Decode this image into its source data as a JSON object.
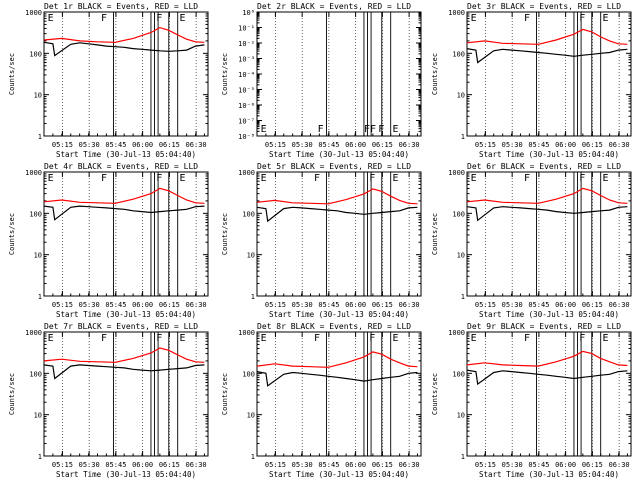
{
  "figure": {
    "time_start_label": "Start Time (30-Jul-13 05:04:40)",
    "x_tick_labels": [
      "05:15",
      "05:30",
      "05:45",
      "06:00",
      "06:15",
      "06:30"
    ],
    "ylabel": "Counts/sec"
  },
  "colors": {
    "events": "#000000",
    "lld": "#ff0000",
    "axes": "#000000"
  },
  "chart_data": [
    {
      "type": "line",
      "title": "Det 1r BLACK = Events, RED = LLD",
      "ylabel": "Counts/sec",
      "xlabel": "Start Time (30-Jul-13 05:04:40)",
      "yscale": "log",
      "ylim": [
        1,
        1000
      ],
      "y_tick_labels": [
        "1",
        "10",
        "100",
        "1000"
      ],
      "letters": [
        "E",
        "F",
        "F",
        "E"
      ],
      "series": [
        {
          "name": "Events",
          "color": "black",
          "x_min": [
            0,
            5,
            6,
            15,
            20,
            25,
            30,
            35,
            40,
            45,
            50,
            55,
            60,
            65,
            70,
            75,
            80,
            85,
            90
          ],
          "values": [
            185,
            170,
            88,
            165,
            180,
            170,
            160,
            150,
            145,
            140,
            130,
            125,
            120,
            115,
            112,
            115,
            120,
            150,
            160
          ]
        },
        {
          "name": "LLD",
          "color": "red",
          "x_min": [
            0,
            10,
            20,
            30,
            40,
            50,
            60,
            65,
            70,
            75,
            80,
            85,
            90
          ],
          "values": [
            210,
            230,
            200,
            190,
            185,
            230,
            320,
            420,
            360,
            280,
            220,
            190,
            185
          ]
        }
      ]
    },
    {
      "type": "line",
      "title": "Det 2r BLACK = Events, RED = LLD",
      "ylabel": "Counts/sec",
      "xlabel": "Start Time (30-Jul-13 05:04:40)",
      "yscale": "log",
      "ylim": [
        1e-08,
        1
      ],
      "y_tick_labels": [
        "10⁻⁸",
        "10⁻⁷",
        "10⁻⁶",
        "10⁻⁵",
        "10⁻⁴",
        "10⁻³",
        "10⁻²",
        "10⁻¹",
        "10⁰"
      ],
      "letters": [
        "E",
        "F",
        "FF",
        "F",
        "E"
      ],
      "series": []
    },
    {
      "type": "line",
      "title": "Det 3r BLACK = Events, RED = LLD",
      "ylabel": "Counts/sec",
      "xlabel": "Start Time (30-Jul-13 05:04:40)",
      "yscale": "log",
      "ylim": [
        1,
        1000
      ],
      "y_tick_labels": [
        "1",
        "10",
        "100",
        "1000"
      ],
      "letters": [
        "E",
        "F",
        "F",
        "E"
      ],
      "series": [
        {
          "name": "Events",
          "color": "black",
          "x_min": [
            0,
            5,
            6,
            15,
            20,
            25,
            30,
            35,
            40,
            45,
            50,
            55,
            60,
            65,
            70,
            75,
            80,
            85,
            90
          ],
          "values": [
            130,
            120,
            60,
            115,
            125,
            120,
            115,
            110,
            105,
            100,
            95,
            90,
            85,
            90,
            95,
            100,
            105,
            120,
            125
          ]
        },
        {
          "name": "LLD",
          "color": "red",
          "x_min": [
            0,
            10,
            20,
            30,
            40,
            50,
            60,
            65,
            70,
            75,
            80,
            85,
            90
          ],
          "values": [
            180,
            200,
            175,
            170,
            165,
            210,
            290,
            380,
            330,
            250,
            200,
            170,
            165
          ]
        }
      ]
    },
    {
      "type": "line",
      "title": "Det 4r BLACK = Events, RED = LLD",
      "ylabel": "Counts/sec",
      "xlabel": "Start Time (30-Jul-13 05:04:40)",
      "yscale": "log",
      "ylim": [
        1,
        1000
      ],
      "y_tick_labels": [
        "1",
        "10",
        "100",
        "1000"
      ],
      "letters": [
        "E",
        "F",
        "F",
        "E"
      ],
      "series": [
        {
          "name": "Events",
          "color": "black",
          "x_min": [
            0,
            5,
            6,
            15,
            20,
            25,
            30,
            35,
            40,
            45,
            50,
            55,
            60,
            65,
            70,
            75,
            80,
            85,
            90
          ],
          "values": [
            150,
            140,
            70,
            140,
            150,
            145,
            140,
            135,
            130,
            125,
            115,
            110,
            105,
            110,
            115,
            120,
            125,
            145,
            150
          ]
        },
        {
          "name": "LLD",
          "color": "red",
          "x_min": [
            0,
            10,
            20,
            30,
            40,
            50,
            60,
            65,
            70,
            75,
            80,
            85,
            90
          ],
          "values": [
            190,
            210,
            185,
            180,
            175,
            220,
            300,
            400,
            350,
            270,
            210,
            180,
            175
          ]
        }
      ]
    },
    {
      "type": "line",
      "title": "Det 5r BLACK = Events, RED = LLD",
      "ylabel": "Counts/sec",
      "xlabel": "Start Time (30-Jul-13 05:04:40)",
      "yscale": "log",
      "ylim": [
        1,
        1000
      ],
      "y_tick_labels": [
        "1",
        "10",
        "100",
        "1000"
      ],
      "letters": [
        "E",
        "F",
        "F",
        "E"
      ],
      "series": [
        {
          "name": "Events",
          "color": "black",
          "x_min": [
            0,
            5,
            6,
            15,
            20,
            25,
            30,
            35,
            40,
            45,
            50,
            55,
            60,
            65,
            70,
            75,
            80,
            85,
            90
          ],
          "values": [
            140,
            130,
            65,
            130,
            140,
            135,
            130,
            125,
            120,
            115,
            105,
            100,
            95,
            100,
            105,
            110,
            115,
            135,
            140
          ]
        },
        {
          "name": "LLD",
          "color": "red",
          "x_min": [
            0,
            10,
            20,
            30,
            40,
            50,
            60,
            65,
            70,
            75,
            80,
            85,
            90
          ],
          "values": [
            185,
            205,
            180,
            175,
            170,
            215,
            295,
            390,
            340,
            260,
            205,
            175,
            170
          ]
        }
      ]
    },
    {
      "type": "line",
      "title": "Det 6r BLACK = Events, RED = LLD",
      "ylabel": "Counts/sec",
      "xlabel": "Start Time (30-Jul-13 05:04:40)",
      "yscale": "log",
      "ylim": [
        1,
        1000
      ],
      "y_tick_labels": [
        "1",
        "10",
        "100",
        "1000"
      ],
      "letters": [
        "E",
        "F",
        "F",
        "E"
      ],
      "series": [
        {
          "name": "Events",
          "color": "black",
          "x_min": [
            0,
            5,
            6,
            15,
            20,
            25,
            30,
            35,
            40,
            45,
            50,
            55,
            60,
            65,
            70,
            75,
            80,
            85,
            90
          ],
          "values": [
            145,
            135,
            68,
            135,
            145,
            140,
            135,
            130,
            125,
            120,
            110,
            105,
            100,
            105,
            110,
            115,
            120,
            140,
            145
          ]
        },
        {
          "name": "LLD",
          "color": "red",
          "x_min": [
            0,
            10,
            20,
            30,
            40,
            50,
            60,
            65,
            70,
            75,
            80,
            85,
            90
          ],
          "values": [
            190,
            210,
            185,
            180,
            175,
            220,
            300,
            400,
            350,
            270,
            210,
            180,
            175
          ]
        }
      ]
    },
    {
      "type": "line",
      "title": "Det 7r BLACK = Events, RED = LLD",
      "ylabel": "Counts/sec",
      "xlabel": "Start Time (30-Jul-13 05:04:40)",
      "yscale": "log",
      "ylim": [
        1,
        1000
      ],
      "y_tick_labels": [
        "1",
        "10",
        "100",
        "1000"
      ],
      "letters": [
        "E",
        "F",
        "F",
        "E"
      ],
      "series": [
        {
          "name": "Events",
          "color": "black",
          "x_min": [
            0,
            5,
            6,
            15,
            20,
            25,
            30,
            35,
            40,
            45,
            50,
            55,
            60,
            65,
            70,
            75,
            80,
            85,
            90
          ],
          "values": [
            160,
            150,
            75,
            150,
            160,
            155,
            150,
            145,
            140,
            135,
            125,
            120,
            115,
            120,
            125,
            130,
            135,
            155,
            160
          ]
        },
        {
          "name": "LLD",
          "color": "red",
          "x_min": [
            0,
            10,
            20,
            30,
            40,
            50,
            60,
            65,
            70,
            75,
            80,
            85,
            90
          ],
          "values": [
            200,
            220,
            195,
            190,
            185,
            230,
            310,
            410,
            360,
            280,
            220,
            190,
            185
          ]
        }
      ]
    },
    {
      "type": "line",
      "title": "Det 8r BLACK = Events, RED = LLD",
      "ylabel": "Counts/sec",
      "xlabel": "Start Time (30-Jul-13 05:04:40)",
      "yscale": "log",
      "ylim": [
        1,
        1000
      ],
      "y_tick_labels": [
        "1",
        "10",
        "100",
        "1000"
      ],
      "letters": [
        "E",
        "F",
        "F",
        "E"
      ],
      "series": [
        {
          "name": "Events",
          "color": "black",
          "x_min": [
            0,
            5,
            6,
            15,
            20,
            25,
            30,
            35,
            40,
            45,
            50,
            55,
            60,
            65,
            70,
            75,
            80,
            85,
            90
          ],
          "values": [
            110,
            100,
            50,
            95,
            105,
            100,
            95,
            90,
            85,
            80,
            75,
            70,
            65,
            70,
            75,
            80,
            85,
            100,
            105
          ]
        },
        {
          "name": "LLD",
          "color": "red",
          "x_min": [
            0,
            10,
            20,
            30,
            40,
            50,
            60,
            65,
            70,
            75,
            80,
            85,
            90
          ],
          "values": [
            150,
            170,
            150,
            145,
            140,
            180,
            250,
            330,
            290,
            220,
            180,
            150,
            145
          ]
        }
      ]
    },
    {
      "type": "line",
      "title": "Det 9r BLACK = Events, RED = LLD",
      "ylabel": "Counts/sec",
      "xlabel": "Start Time (30-Jul-13 05:04:40)",
      "yscale": "log",
      "ylim": [
        1,
        1000
      ],
      "y_tick_labels": [
        "1",
        "10",
        "100",
        "1000"
      ],
      "letters": [
        "E",
        "F",
        "F",
        "E"
      ],
      "series": [
        {
          "name": "Events",
          "color": "black",
          "x_min": [
            0,
            5,
            6,
            15,
            20,
            25,
            30,
            35,
            40,
            45,
            50,
            55,
            60,
            65,
            70,
            75,
            80,
            85,
            90
          ],
          "values": [
            120,
            110,
            55,
            105,
            115,
            110,
            105,
            100,
            95,
            90,
            85,
            80,
            75,
            80,
            85,
            90,
            95,
            110,
            115
          ]
        },
        {
          "name": "LLD",
          "color": "red",
          "x_min": [
            0,
            10,
            20,
            30,
            40,
            50,
            60,
            65,
            70,
            75,
            80,
            85,
            90
          ],
          "values": [
            160,
            180,
            160,
            155,
            150,
            190,
            260,
            340,
            300,
            230,
            190,
            160,
            155
          ]
        }
      ]
    }
  ]
}
